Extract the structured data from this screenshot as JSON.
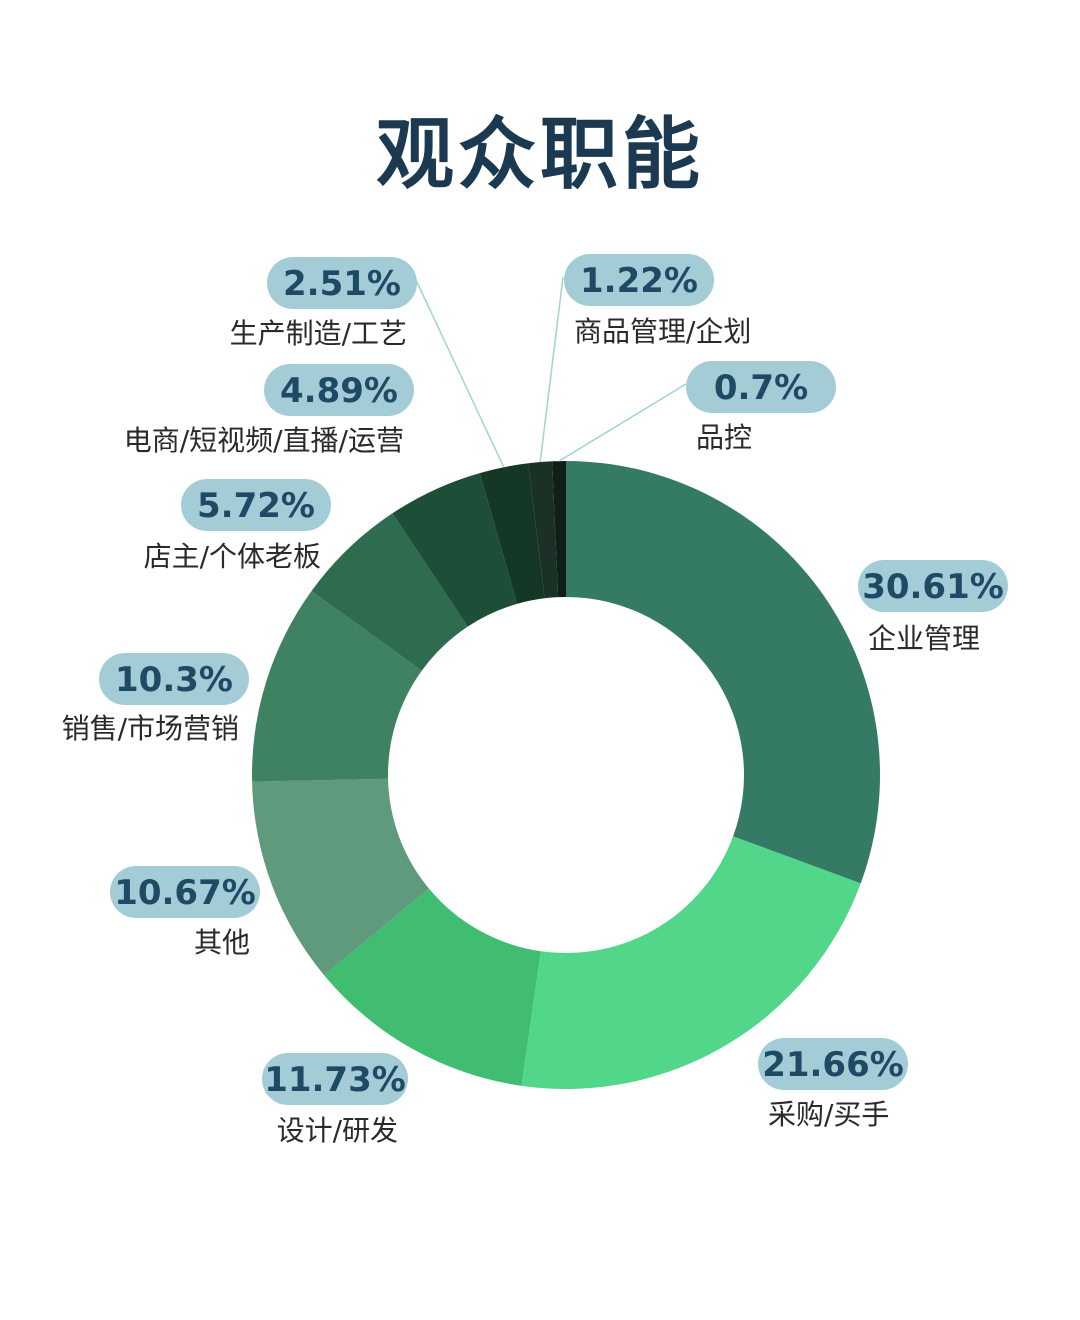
{
  "chart_data": {
    "type": "pie",
    "variant": "donut",
    "title": "观众职能",
    "unit": "%",
    "categories": [
      "企业管理",
      "采购/买手",
      "设计/研发",
      "其他",
      "销售/市场营销",
      "店主/个体老板",
      "电商/短视频/直播/运营",
      "生产制造/工艺",
      "商品管理/企划",
      "品控"
    ],
    "values": [
      30.61,
      21.66,
      11.73,
      10.67,
      10.3,
      5.72,
      4.89,
      2.51,
      1.22,
      0.7
    ],
    "labels": [
      "30.61%",
      "21.66%",
      "11.73%",
      "10.67%",
      "10.3%",
      "5.72%",
      "4.89%",
      "2.51%",
      "1.22%",
      "0.7%"
    ],
    "colors": [
      "#347a65",
      "#52d68a",
      "#40bd70",
      "#5e9a7b",
      "#3f8262",
      "#2e6b4f",
      "#1d4e37",
      "#143726",
      "#1c3126",
      "#0f1f17"
    ],
    "start_angle": "12 o'clock",
    "direction": "clockwise",
    "label_badge_color": "#a3ccd6",
    "leader_line_color": "#9fd4d6"
  }
}
